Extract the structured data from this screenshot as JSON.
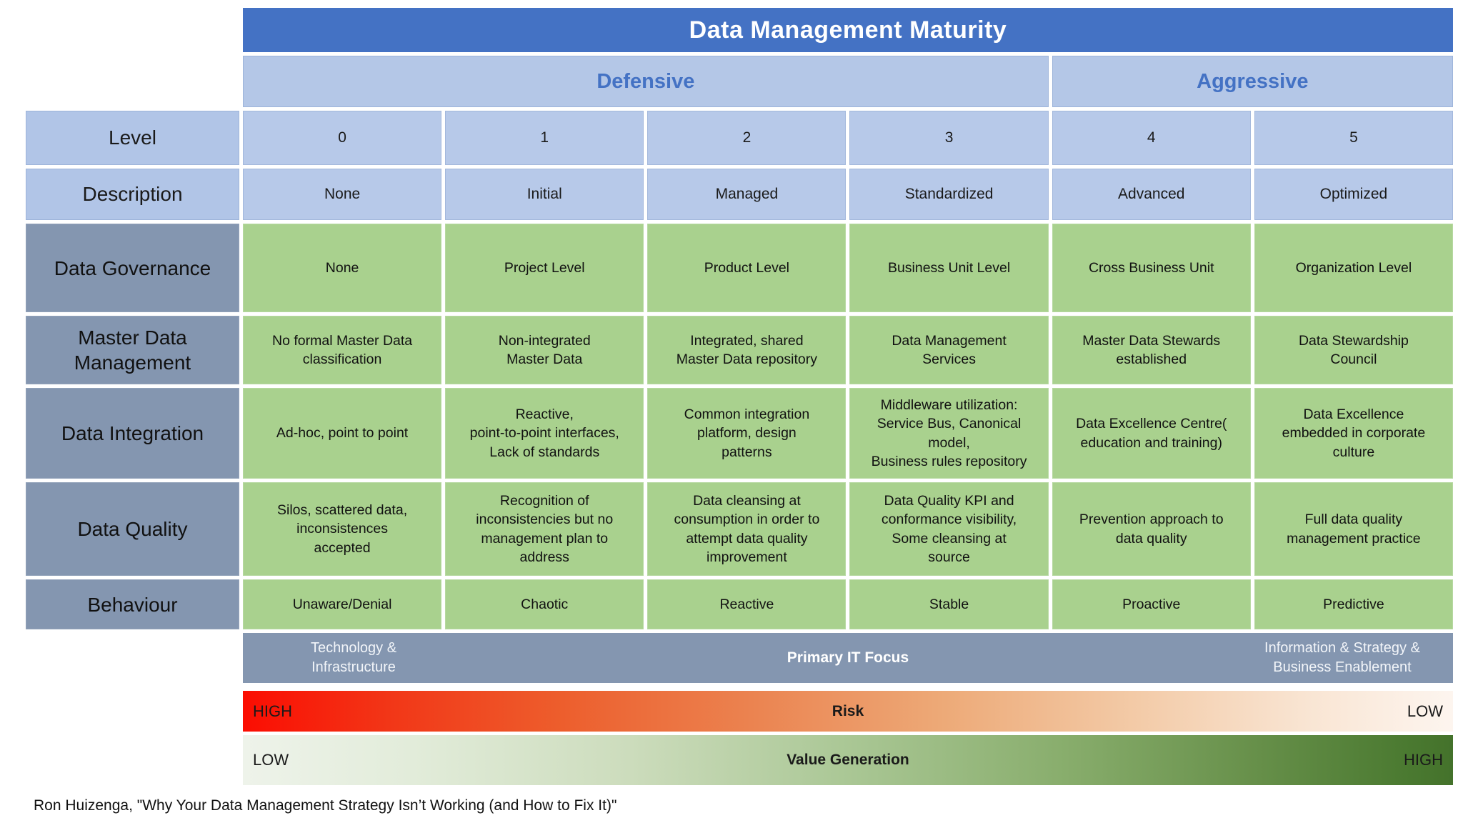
{
  "title": "Data Management Maturity",
  "groups": {
    "defensive": "Defensive",
    "aggressive": "Aggressive"
  },
  "header_rows": {
    "level": {
      "label": "Level",
      "cells": [
        "0",
        "1",
        "2",
        "3",
        "4",
        "5"
      ]
    },
    "description": {
      "label": "Description",
      "cells": [
        "None",
        "Initial",
        "Managed",
        "Standardized",
        "Advanced",
        "Optimized"
      ]
    }
  },
  "category_rows": {
    "governance": {
      "label": "Data Governance",
      "cells": [
        "None",
        "Project Level",
        "Product Level",
        "Business Unit Level",
        "Cross Business Unit",
        "Organization Level"
      ]
    },
    "master_data": {
      "label": "Master Data\nManagement",
      "cells": [
        "No formal Master Data\nclassification",
        "Non-integrated\nMaster Data",
        "Integrated, shared\nMaster Data repository",
        "Data Management\nServices",
        "Master Data Stewards\nestablished",
        "Data Stewardship\nCouncil"
      ]
    },
    "integration": {
      "label": "Data Integration",
      "cells": [
        "Ad-hoc, point to point",
        "Reactive,\npoint-to-point interfaces,\nLack of standards",
        "Common integration\nplatform, design\npatterns",
        "Middleware utilization:\nService Bus, Canonical\nmodel,\nBusiness rules repository",
        "Data Excellence Centre(\neducation and training)",
        "Data Excellence\nembedded in corporate\nculture"
      ]
    },
    "quality": {
      "label": "Data Quality",
      "cells": [
        "Silos, scattered data,\ninconsistences\naccepted",
        "Recognition of\ninconsistencies but no\nmanagement plan to\naddress",
        "Data cleansing at\nconsumption in order to\nattempt data quality\nimprovement",
        "Data Quality KPI and\nconformance visibility,\nSome cleansing at\nsource",
        "Prevention approach to\ndata quality",
        "Full data quality\nmanagement practice"
      ]
    },
    "behaviour": {
      "label": "Behaviour",
      "cells": [
        "Unaware/Denial",
        "Chaotic",
        "Reactive",
        "Stable",
        "Proactive",
        "Predictive"
      ]
    }
  },
  "it_focus": {
    "left": "Technology &\nInfrastructure",
    "center": "Primary IT Focus",
    "right": "Information & Strategy &\nBusiness Enablement"
  },
  "risk_bar": {
    "left": "HIGH",
    "center": "Risk",
    "right": "LOW"
  },
  "value_bar": {
    "left": "LOW",
    "center": "Value Generation",
    "right": "HIGH"
  },
  "footer": "Ron Huizenga, \"Why Your Data Management Strategy Isn’t Working (and How to Fix It)\"",
  "colors": {
    "title_blue": "#4472C4",
    "light_blue": "#B4C7E7",
    "category_gray_blue": "#8496B0",
    "cell_green": "#A9D18E",
    "risk_red_start": "#FB0D02",
    "risk_red_end": "#FDF5EF",
    "value_green_start": "#EEF3EA",
    "value_green_end": "#44722B"
  }
}
